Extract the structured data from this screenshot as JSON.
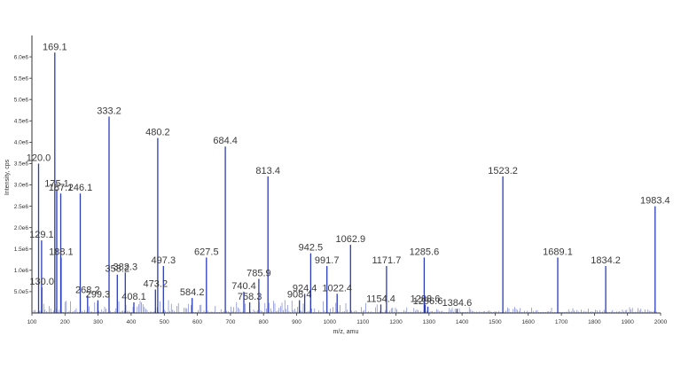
{
  "chart_data": {
    "type": "line",
    "xlabel": "m/z, amu",
    "ylabel": "Intensity, cps",
    "xlim": [
      100,
      2000
    ],
    "ylim": [
      0,
      6500000.0
    ],
    "x_ticks": [
      100,
      200,
      300,
      400,
      500,
      600,
      700,
      800,
      900,
      1000,
      1100,
      1200,
      1300,
      1400,
      1500,
      1600,
      1700,
      1800,
      1900,
      2000
    ],
    "y_ticks": [
      {
        "value": 500000,
        "label": "5.0e5"
      },
      {
        "value": 1000000,
        "label": "1.0e6"
      },
      {
        "value": 1500000,
        "label": "1.5e6"
      },
      {
        "value": 2000000,
        "label": "2.0e6"
      },
      {
        "value": 2500000,
        "label": "2.5e6"
      },
      {
        "value": 3000000,
        "label": "3.0e6"
      },
      {
        "value": 3500000,
        "label": "3.5e6"
      },
      {
        "value": 4000000,
        "label": "4.0e6"
      },
      {
        "value": 4500000,
        "label": "4.5e6"
      },
      {
        "value": 5000000,
        "label": "5.0e6"
      },
      {
        "value": 5500000,
        "label": "5.5e6"
      },
      {
        "value": 6000000,
        "label": "6.0e6"
      }
    ],
    "grid": false,
    "color": "#2a3cb8",
    "peaks": [
      {
        "x": 120.0,
        "y": 3500000,
        "label": "120.0"
      },
      {
        "x": 129.1,
        "y": 1700000,
        "label": "129.1"
      },
      {
        "x": 130.0,
        "y": 600000,
        "label": "130.0"
      },
      {
        "x": 169.1,
        "y": 6100000,
        "label": "169.1"
      },
      {
        "x": 175.1,
        "y": 2900000,
        "label": "175.1"
      },
      {
        "x": 187.1,
        "y": 2800000,
        "label": "187.1"
      },
      {
        "x": 188.1,
        "y": 1300000,
        "label": "188.1"
      },
      {
        "x": 246.1,
        "y": 2800000,
        "label": "246.1"
      },
      {
        "x": 268.2,
        "y": 400000,
        "label": "268.2"
      },
      {
        "x": 299.3,
        "y": 300000,
        "label": "299.3"
      },
      {
        "x": 333.2,
        "y": 4600000,
        "label": "333.2"
      },
      {
        "x": 358.2,
        "y": 900000,
        "label": "358.2"
      },
      {
        "x": 382.3,
        "y": 950000,
        "label": "382.3"
      },
      {
        "x": 408.1,
        "y": 250000,
        "label": "408.1"
      },
      {
        "x": 473.2,
        "y": 550000,
        "label": "473.2"
      },
      {
        "x": 480.2,
        "y": 4100000,
        "label": "480.2"
      },
      {
        "x": 497.3,
        "y": 1100000,
        "label": "497.3"
      },
      {
        "x": 584.2,
        "y": 350000,
        "label": "584.2"
      },
      {
        "x": 627.5,
        "y": 1300000,
        "label": "627.5"
      },
      {
        "x": 684.4,
        "y": 3900000,
        "label": "684.4"
      },
      {
        "x": 740.4,
        "y": 500000,
        "label": "740.4"
      },
      {
        "x": 758.3,
        "y": 250000,
        "label": "758.3"
      },
      {
        "x": 785.9,
        "y": 800000,
        "label": "785.9"
      },
      {
        "x": 813.4,
        "y": 3200000,
        "label": "813.4"
      },
      {
        "x": 908.4,
        "y": 300000,
        "label": "908.4"
      },
      {
        "x": 924.4,
        "y": 450000,
        "label": "924.4"
      },
      {
        "x": 942.5,
        "y": 1400000,
        "label": "942.5"
      },
      {
        "x": 991.7,
        "y": 1100000,
        "label": "991.7"
      },
      {
        "x": 1022.4,
        "y": 450000,
        "label": "1022.4"
      },
      {
        "x": 1062.9,
        "y": 1600000,
        "label": "1062.9"
      },
      {
        "x": 1154.4,
        "y": 200000,
        "label": "1154.4"
      },
      {
        "x": 1171.7,
        "y": 1100000,
        "label": "1171.7"
      },
      {
        "x": 1285.6,
        "y": 1300000,
        "label": "1285.6"
      },
      {
        "x": 1288.6,
        "y": 200000,
        "label": "1288.6"
      },
      {
        "x": 1296.6,
        "y": 150000,
        "label": "1296.6"
      },
      {
        "x": 1384.6,
        "y": 100000,
        "label": "1384.6"
      },
      {
        "x": 1523.2,
        "y": 3200000,
        "label": "1523.2"
      },
      {
        "x": 1689.1,
        "y": 1300000,
        "label": "1689.1"
      },
      {
        "x": 1834.2,
        "y": 1100000,
        "label": "1834.2"
      },
      {
        "x": 1983.4,
        "y": 2500000,
        "label": "1983.4"
      }
    ]
  }
}
